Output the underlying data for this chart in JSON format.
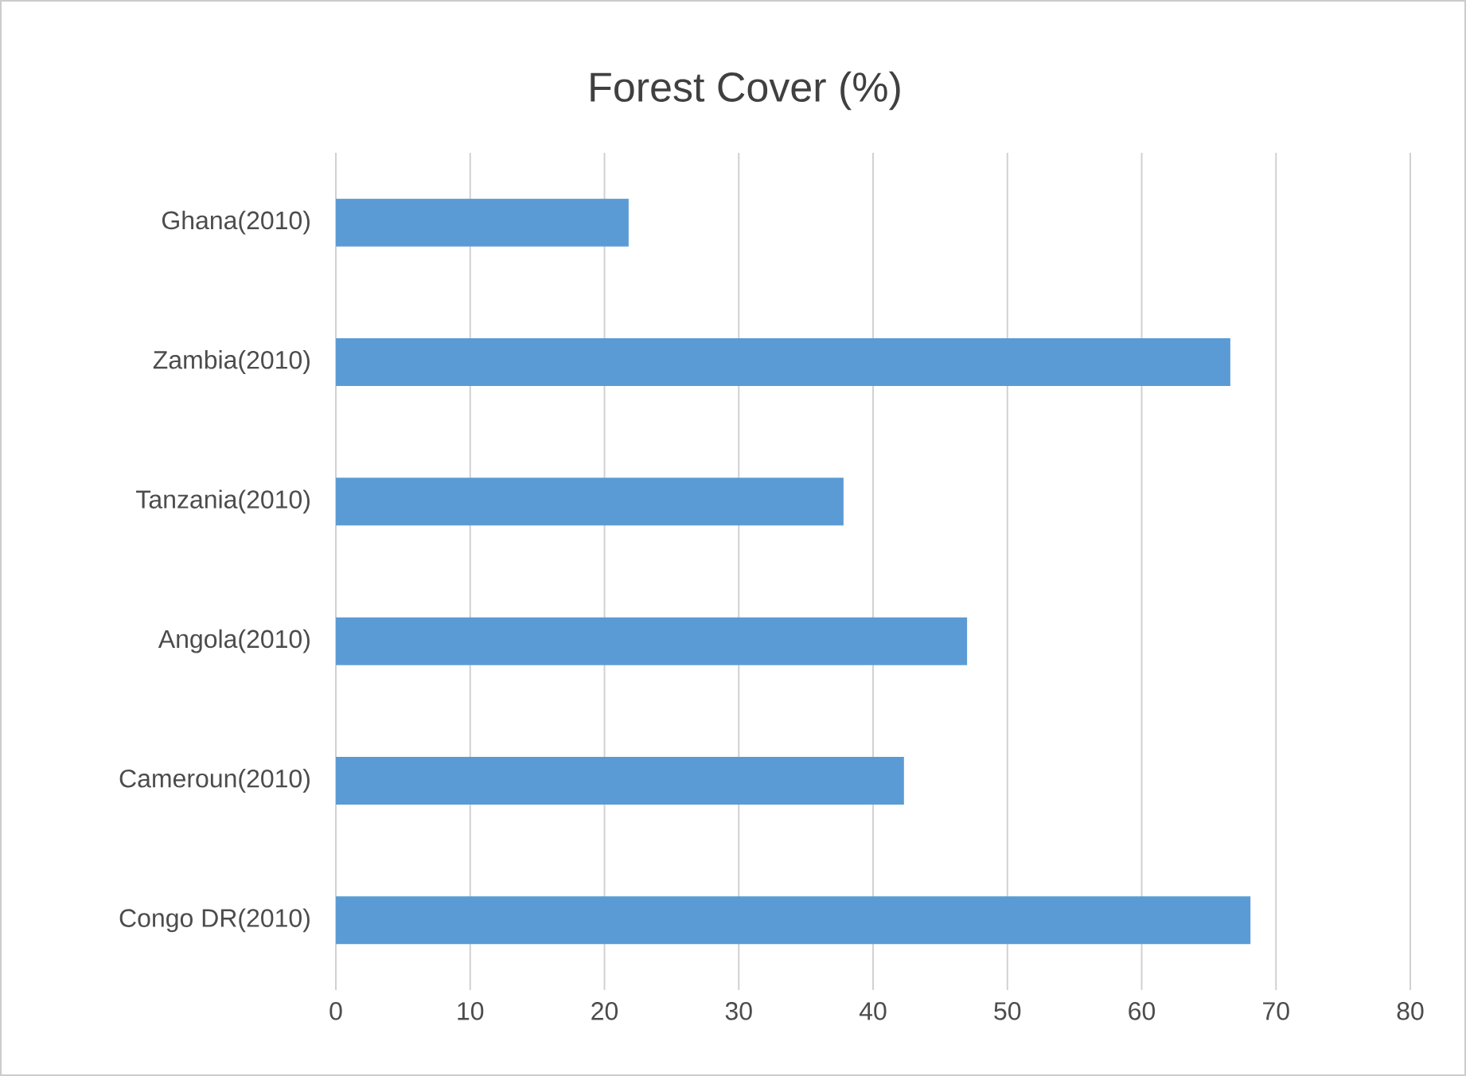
{
  "chart_data": {
    "type": "bar",
    "orientation": "horizontal",
    "title": "Forest Cover (%)",
    "categories": [
      "Ghana(2010)",
      "Zambia(2010)",
      "Tanzania(2010)",
      "Angola(2010)",
      "Cameroun(2010)",
      "Congo DR(2010)"
    ],
    "values": [
      21.8,
      66.6,
      37.8,
      47.0,
      42.3,
      68.1
    ],
    "color": "#5b9bd5",
    "xlim": [
      0,
      80
    ],
    "xticks": [
      0,
      10,
      20,
      30,
      40,
      50,
      60,
      70,
      80
    ],
    "grid": "x"
  }
}
